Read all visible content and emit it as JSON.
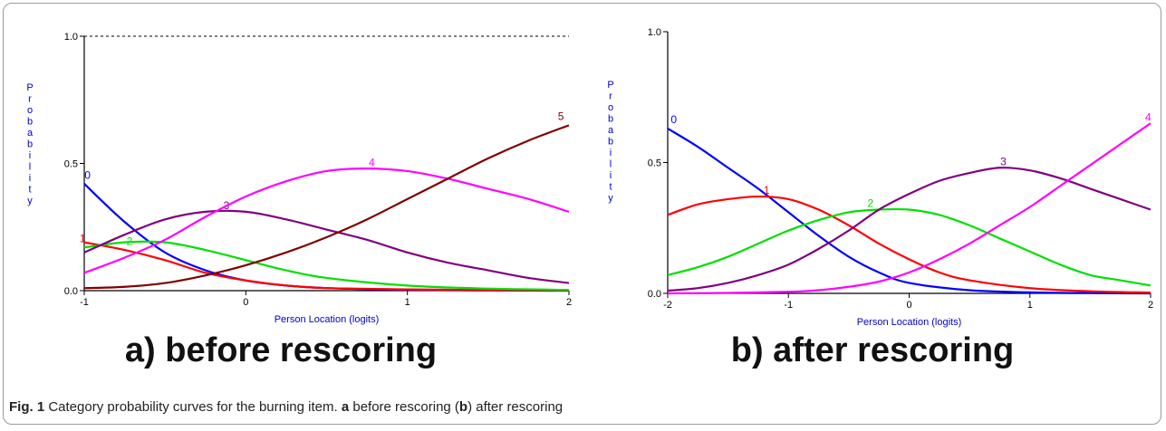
{
  "caption": {
    "figure_label": "Fig. 1",
    "text_1": "Category probability curves for the burning item.",
    "bold_a": "a",
    "text_2": "before rescoring (",
    "bold_b": "b",
    "text_3": ") after rescoring"
  },
  "colors": {
    "axis": "#000000",
    "axis_label": "#0000cc",
    "cat0": "#0000ff",
    "cat1": "#ff0000",
    "cat2": "#00e000",
    "cat3": "#800080",
    "cat4": "#ff00ff",
    "cat5": "#800000"
  },
  "chart_data": [
    {
      "type": "line",
      "panel_label": "a) before rescoring",
      "xlabel": "Person Location (logits)",
      "ylabel": "Probability",
      "xlim": [
        -1,
        2
      ],
      "ylim": [
        0,
        1
      ],
      "xticks": [
        -1,
        0,
        1,
        2
      ],
      "yticks": [
        "0.0",
        "0.5",
        "1.0"
      ],
      "reference_line_y": 1.0,
      "series": [
        {
          "name": "0",
          "color": "#0000ff",
          "x": [
            -1,
            -0.75,
            -0.5,
            -0.25,
            0,
            0.25,
            0.5,
            1,
            1.5,
            2
          ],
          "y": [
            0.42,
            0.27,
            0.15,
            0.08,
            0.04,
            0.02,
            0.01,
            0.003,
            0.001,
            0.0
          ]
        },
        {
          "name": "1",
          "color": "#ff0000",
          "x": [
            -1,
            -0.75,
            -0.5,
            -0.25,
            0,
            0.25,
            0.5,
            1,
            1.5,
            2
          ],
          "y": [
            0.19,
            0.16,
            0.12,
            0.07,
            0.04,
            0.02,
            0.01,
            0.005,
            0.002,
            0.001
          ]
        },
        {
          "name": "2",
          "color": "#00e000",
          "x": [
            -1,
            -0.75,
            -0.5,
            -0.25,
            0,
            0.25,
            0.5,
            1,
            1.5,
            2
          ],
          "y": [
            0.17,
            0.19,
            0.19,
            0.16,
            0.12,
            0.08,
            0.05,
            0.02,
            0.008,
            0.003
          ]
        },
        {
          "name": "3",
          "color": "#800080",
          "x": [
            -1,
            -0.75,
            -0.5,
            -0.25,
            0,
            0.25,
            0.5,
            0.75,
            1,
            1.25,
            1.5,
            1.75,
            2
          ],
          "y": [
            0.15,
            0.22,
            0.28,
            0.31,
            0.31,
            0.28,
            0.24,
            0.2,
            0.15,
            0.11,
            0.08,
            0.05,
            0.03
          ]
        },
        {
          "name": "4",
          "color": "#ff00ff",
          "x": [
            -1,
            -0.75,
            -0.5,
            -0.25,
            0,
            0.25,
            0.5,
            0.75,
            1,
            1.25,
            1.5,
            1.75,
            2
          ],
          "y": [
            0.07,
            0.13,
            0.2,
            0.29,
            0.37,
            0.43,
            0.47,
            0.48,
            0.47,
            0.44,
            0.4,
            0.36,
            0.31
          ]
        },
        {
          "name": "5",
          "color": "#800000",
          "x": [
            -1,
            -0.75,
            -0.5,
            -0.25,
            0,
            0.25,
            0.5,
            0.75,
            1,
            1.25,
            1.5,
            1.75,
            2
          ],
          "y": [
            0.01,
            0.015,
            0.03,
            0.06,
            0.1,
            0.15,
            0.21,
            0.28,
            0.36,
            0.44,
            0.52,
            0.59,
            0.65
          ]
        }
      ]
    },
    {
      "type": "line",
      "panel_label": "b) after rescoring",
      "xlabel": "Person Location (logits)",
      "ylabel": "Probability",
      "xlim": [
        -2,
        2
      ],
      "ylim": [
        0,
        1
      ],
      "xticks": [
        -2,
        -1,
        0,
        1,
        2
      ],
      "yticks": [
        "0.0",
        "0.5",
        "1.0"
      ],
      "series": [
        {
          "name": "0",
          "color": "#0000ff",
          "x": [
            -2,
            -1.75,
            -1.5,
            -1.25,
            -1,
            -0.75,
            -0.5,
            -0.25,
            0,
            0.5,
            1,
            1.5,
            2
          ],
          "y": [
            0.63,
            0.56,
            0.48,
            0.4,
            0.31,
            0.22,
            0.14,
            0.08,
            0.04,
            0.012,
            0.004,
            0.001,
            0.0
          ]
        },
        {
          "name": "1",
          "color": "#ff0000",
          "x": [
            -2,
            -1.75,
            -1.5,
            -1.25,
            -1,
            -0.75,
            -0.5,
            -0.25,
            0,
            0.25,
            0.5,
            1,
            1.5,
            2
          ],
          "y": [
            0.3,
            0.34,
            0.36,
            0.37,
            0.36,
            0.32,
            0.26,
            0.19,
            0.13,
            0.08,
            0.05,
            0.02,
            0.008,
            0.003
          ]
        },
        {
          "name": "2",
          "color": "#00e000",
          "x": [
            -2,
            -1.75,
            -1.5,
            -1.25,
            -1,
            -0.75,
            -0.5,
            -0.25,
            0,
            0.25,
            0.5,
            0.75,
            1,
            1.25,
            1.5,
            1.75,
            2
          ],
          "y": [
            0.07,
            0.1,
            0.14,
            0.19,
            0.24,
            0.28,
            0.31,
            0.32,
            0.32,
            0.3,
            0.26,
            0.21,
            0.16,
            0.11,
            0.07,
            0.05,
            0.03
          ]
        },
        {
          "name": "3",
          "color": "#800080",
          "x": [
            -2,
            -1.75,
            -1.5,
            -1.25,
            -1,
            -0.75,
            -0.5,
            -0.25,
            0,
            0.25,
            0.5,
            0.75,
            1,
            1.25,
            1.5,
            1.75,
            2
          ],
          "y": [
            0.01,
            0.02,
            0.04,
            0.07,
            0.11,
            0.17,
            0.24,
            0.32,
            0.38,
            0.43,
            0.46,
            0.48,
            0.47,
            0.44,
            0.4,
            0.36,
            0.32
          ]
        },
        {
          "name": "4",
          "color": "#ff00ff",
          "x": [
            -2,
            -1.5,
            -1,
            -0.75,
            -0.5,
            -0.25,
            0,
            0.25,
            0.5,
            0.75,
            1,
            1.25,
            1.5,
            1.75,
            2
          ],
          "y": [
            0.0,
            0.002,
            0.006,
            0.012,
            0.025,
            0.045,
            0.08,
            0.13,
            0.19,
            0.26,
            0.33,
            0.41,
            0.49,
            0.57,
            0.65
          ]
        }
      ]
    }
  ]
}
